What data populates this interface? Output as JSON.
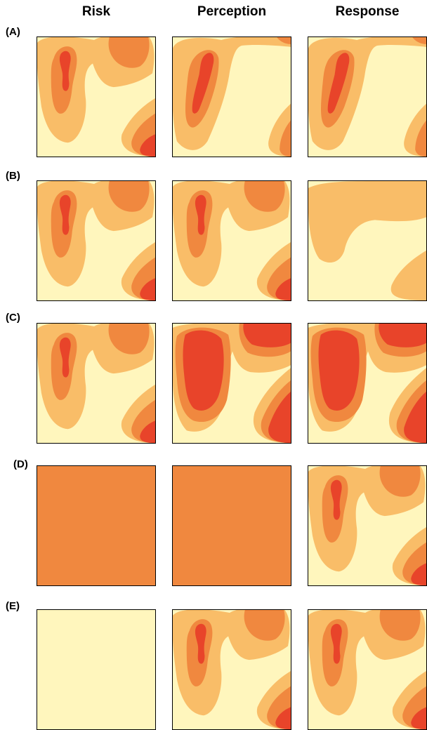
{
  "columns": [
    "Risk",
    "Perception",
    "Response"
  ],
  "colors": {
    "level0": "#fff6bd",
    "level1": "#f9bd68",
    "level2": "#f0883f",
    "level3": "#e8442a"
  },
  "rows": [
    {
      "label": "(A)",
      "panels": [
        "map-standard",
        "map-shifted",
        "map-shifted"
      ]
    },
    {
      "label": "(B)",
      "panels": [
        "map-standard",
        "map-standard",
        "map-smooth"
      ]
    },
    {
      "label": "(C)",
      "panels": [
        "map-standard",
        "map-intense",
        "map-intense"
      ]
    },
    {
      "label": "(D)",
      "panels": [
        "map-uniform-orange",
        "map-uniform-orange",
        "map-standard"
      ]
    },
    {
      "label": "(E)",
      "panels": [
        "map-uniform-yellow",
        "map-standard",
        "map-standard"
      ]
    }
  ]
}
